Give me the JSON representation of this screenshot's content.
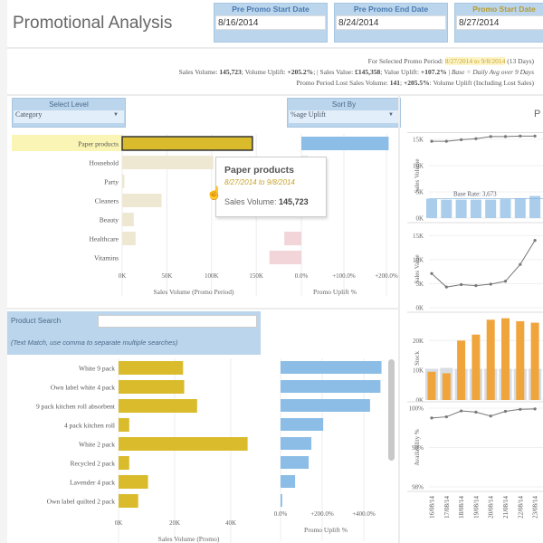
{
  "header": {
    "title": "Promotional Analysis",
    "date_filters": [
      {
        "label": "Pre Promo Start Date",
        "value": "8/16/2014"
      },
      {
        "label": "Pre Promo End Date",
        "value": "8/24/2014"
      },
      {
        "label": "Promo Start Date",
        "value": "8/27/2014"
      }
    ]
  },
  "summary": {
    "line1_prefix": "For Selected Promo Period: ",
    "line1_period": "8/27/2014 to 9/8/2014",
    "line1_suffix": " (13 Days)",
    "line2_a": "Sales Volume: ",
    "line2_a_val": "145,723",
    "line2_b": "; Volume Uplift: ",
    "line2_b_val": "+205.2%",
    "line2_c": "; | Sales Value: ",
    "line2_c_val": "£145,358",
    "line2_d": "; Value Uplift: ",
    "line2_d_val": "+107.2%",
    "line2_e": " | ",
    "line2_e_italic": "Base = Daily Avg over 9 Days",
    "line3_a": "Promo Period Lost Sales Volume: ",
    "line3_a_val": "141",
    "line3_b": "; ",
    "line3_b_val": "+205.5%",
    "line3_c": ": Volume Uplift (Including Lost Sales)"
  },
  "controls": {
    "select_level": {
      "label": "Select Level",
      "value": "Category"
    },
    "sort_by": {
      "label": "Sort By",
      "value": "%age Uplift"
    }
  },
  "tooltip": {
    "title": "Paper products",
    "period": "8/27/2014 to 9/8/2014",
    "metric_label": "Sales Volume: ",
    "metric_value": "145,723"
  },
  "product_search": {
    "label": "Product Search",
    "value": "",
    "hint": "(Text Match, use comma to separate multiple searches)"
  },
  "right_panel_title": "P",
  "colors": {
    "gold": "#d9bb2c",
    "gold_light": "#eee8d2",
    "blue": "#8bbde6",
    "pink": "#f2d5d8",
    "orange": "#f0a43c",
    "grey_bar": "#d8dde4",
    "select_panel": "#bad5ec",
    "highlight_row": "#fbf5b5"
  },
  "chart_data": [
    {
      "id": "category-volume",
      "type": "bar",
      "orientation": "horizontal",
      "categories": [
        "Paper products",
        "Household",
        "Party",
        "Cleaners",
        "Beauty",
        "Healthcare",
        "Vitamins"
      ],
      "values": [
        145723,
        102000,
        2500,
        44000,
        13000,
        15000,
        0
      ],
      "selected": "Paper products",
      "xlabel": "Sales Volume (Promo Period)",
      "xticks": [
        "0K",
        "50K",
        "100K",
        "150K"
      ],
      "xlim": [
        0,
        160000
      ]
    },
    {
      "id": "category-uplift",
      "type": "bar",
      "orientation": "horizontal",
      "categories": [
        "Paper products",
        "Household",
        "Party",
        "Cleaners",
        "Beauty",
        "Healthcare",
        "Vitamins"
      ],
      "values": [
        205.2,
        15,
        0,
        0,
        0,
        -40,
        -75
      ],
      "xlabel": "Promo Uplift %",
      "xticks": [
        "0.0%",
        "+100.0%",
        "+200.0%"
      ],
      "xlim": [
        -100,
        250
      ]
    },
    {
      "id": "product-volume",
      "type": "bar",
      "orientation": "horizontal",
      "categories": [
        "White 9 pack",
        "Own label white 4 pack",
        "9 pack kitchen roll absorbent",
        "4 pack kitchen roll",
        "White 2 pack",
        "Recycled 2 pack",
        "Lavender 4 pack",
        "Own label quilted 2 pack"
      ],
      "values": [
        23000,
        23400,
        28000,
        3800,
        46000,
        3800,
        10500,
        7000
      ],
      "xlabel": "Sales Volume (Promo)",
      "xticks": [
        "0K",
        "20K",
        "40K"
      ],
      "xlim": [
        0,
        50000
      ]
    },
    {
      "id": "product-uplift",
      "type": "bar",
      "orientation": "horizontal",
      "categories": [
        "White 9 pack",
        "Own label white 4 pack",
        "9 pack kitchen roll absorbent",
        "4 pack kitchen roll",
        "White 2 pack",
        "Recycled 2 pack",
        "Lavender 4 pack",
        "Own label quilted 2 pack"
      ],
      "values": [
        485,
        480,
        430,
        205,
        148,
        135,
        70,
        8
      ],
      "xlabel": "Promo Uplift %",
      "xticks": [
        "0.0%",
        "+200.0%",
        "+400.0%"
      ],
      "xlim": [
        0,
        500
      ]
    },
    {
      "id": "daily-sales-volume",
      "type": "bar",
      "ylabel": "Sales Volume",
      "yticks": [
        "0K",
        "5K",
        "10K",
        "15K"
      ],
      "ylim": [
        0,
        16000
      ],
      "annotation": "Base Rate: 3,673",
      "base_rate": 3673,
      "x": [
        "16/08/14",
        "17/08/14",
        "18/08/14",
        "19/08/14",
        "20/08/14",
        "21/08/14",
        "22/08/14",
        "23/08/14"
      ],
      "bars": [
        3700,
        3500,
        3500,
        3500,
        3500,
        3600,
        3800,
        4200
      ],
      "line": [
        14600,
        14600,
        14900,
        15100,
        15500,
        15500,
        15600,
        15600
      ]
    },
    {
      "id": "daily-sales-value",
      "type": "line",
      "ylabel": "Sales Value",
      "yticks": [
        "0K",
        "5K",
        "10K",
        "15K"
      ],
      "ylim": [
        0,
        16000
      ],
      "x": [
        "16/08/14",
        "17/08/14",
        "18/08/14",
        "19/08/14",
        "20/08/14",
        "21/08/14",
        "22/08/14",
        "23/08/14"
      ],
      "values": [
        7100,
        4300,
        4800,
        4600,
        4900,
        5500,
        9000,
        14000
      ]
    },
    {
      "id": "daily-stock",
      "type": "bar",
      "ylabel": "Stock",
      "yticks": [
        "0K",
        "10K",
        "20K"
      ],
      "ylim": [
        0,
        28000
      ],
      "x": [
        "16/08/14",
        "17/08/14",
        "18/08/14",
        "19/08/14",
        "20/08/14",
        "21/08/14",
        "22/08/14",
        "23/08/14"
      ],
      "base_bars": [
        10500,
        10800,
        10500,
        10500,
        10500,
        10500,
        10500,
        10500
      ],
      "values": [
        9500,
        9000,
        20000,
        22000,
        27000,
        27500,
        26500,
        26000
      ]
    },
    {
      "id": "daily-availability",
      "type": "line",
      "ylabel": "Availability %",
      "yticks": [
        "98%",
        "99%",
        "100%"
      ],
      "ylim": [
        98,
        100
      ],
      "x": [
        "16/08/14",
        "17/08/14",
        "18/08/14",
        "19/08/14",
        "20/08/14",
        "21/08/14",
        "22/08/14",
        "23/08/14"
      ],
      "values": [
        99.75,
        99.78,
        99.93,
        99.9,
        99.8,
        99.92,
        99.97,
        99.98
      ]
    }
  ]
}
